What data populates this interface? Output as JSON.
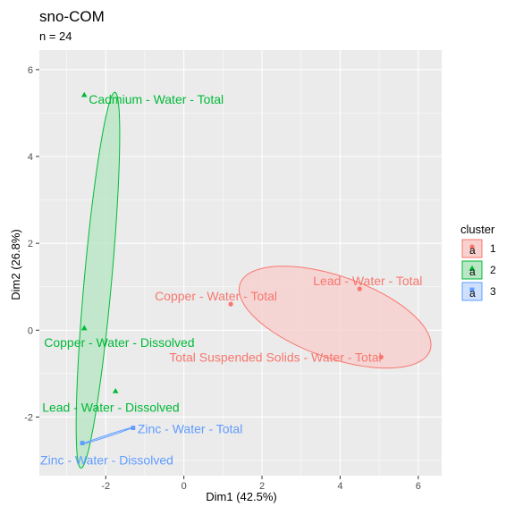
{
  "chart_data": {
    "type": "scatter",
    "title": "sno-COM",
    "subtitle": "n = 24",
    "xlabel": "Dim1 (42.5%)",
    "ylabel": "Dim2 (26.8%)",
    "xlim": [
      -3.7,
      6.6
    ],
    "ylim": [
      -3.35,
      6.45
    ],
    "xticks": [
      -2,
      0,
      2,
      4,
      6
    ],
    "yticks": [
      -2,
      0,
      2,
      4,
      6
    ],
    "grid": true,
    "legend": {
      "title": "cluster",
      "placement": "right",
      "entries": [
        {
          "label": "1",
          "color": "#F8766D",
          "fill": "#F8D0CE",
          "shape": "circle"
        },
        {
          "label": "2",
          "color": "#00BA38",
          "fill": "#B9E6C4",
          "shape": "triangle"
        },
        {
          "label": "3",
          "color": "#619CFF",
          "fill": "#CFE0FF",
          "shape": "square"
        }
      ]
    },
    "series": [
      {
        "cluster": "1",
        "color": "#F8766D",
        "fill": "#F8D0CE",
        "shape": "circle",
        "ellipse": {
          "cx": 3.87,
          "cy": 0.3,
          "rx": 2.55,
          "ry": 0.95,
          "angle_deg": -16.9
        },
        "points": [
          {
            "label": "Lead - Water - Total",
            "x": 4.5,
            "y": 0.95
          },
          {
            "label": "Copper - Water - Total",
            "x": 1.2,
            "y": 0.6
          },
          {
            "label": "Total Suspended Solids - Water - Total",
            "x": 5.05,
            "y": -0.62
          }
        ]
      },
      {
        "cluster": "2",
        "color": "#00BA38",
        "fill": "#B9E6C4",
        "shape": "triangle",
        "ellipse": {
          "cx": -2.2,
          "cy": 1.15,
          "rx": 4.35,
          "ry": 0.35,
          "angle_deg": 84.25
        },
        "points": [
          {
            "label": "Cadmium - Water - Total",
            "x": -2.55,
            "y": 5.42
          },
          {
            "label": "Copper - Water - Dissolved",
            "x": -2.55,
            "y": 0.05
          },
          {
            "label": "Lead - Water - Dissolved",
            "x": -1.75,
            "y": -1.4
          }
        ]
      },
      {
        "cluster": "3",
        "color": "#619CFF",
        "fill": "#CFE0FF",
        "shape": "square",
        "ellipse": {
          "cx": -1.95,
          "cy": -2.43,
          "rx": 0.63,
          "ry": 0.02,
          "angle_deg": 16.5
        },
        "points": [
          {
            "label": "Zinc - Water - Total",
            "x": -1.3,
            "y": -2.25
          },
          {
            "label": "Zinc - Water - Dissolved",
            "x": -2.6,
            "y": -2.6
          }
        ]
      }
    ]
  }
}
